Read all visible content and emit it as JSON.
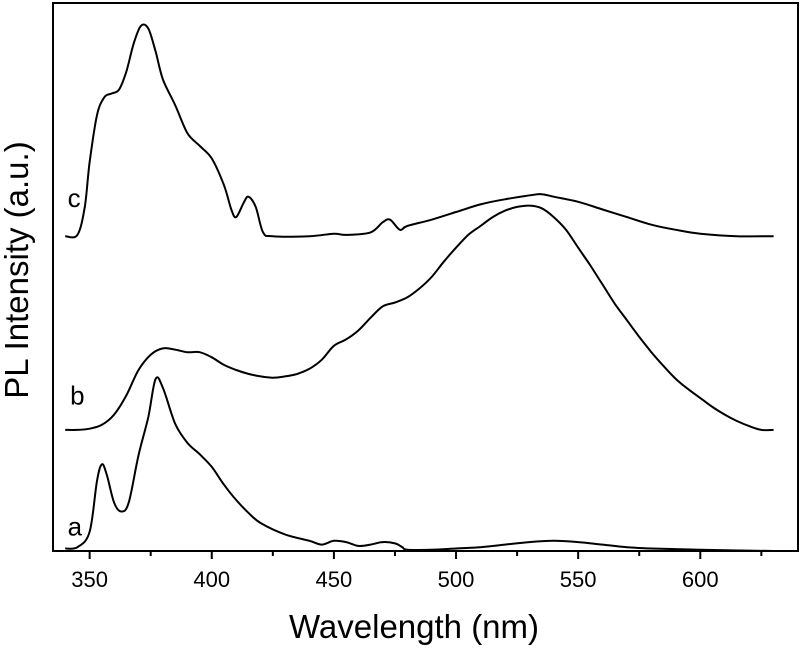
{
  "chart_data": {
    "type": "line",
    "xlabel": "Wavelength (nm)",
    "ylabel": "PL Intensity (a.u.)",
    "xlim": [
      335,
      640
    ],
    "ylim": [
      0,
      4.3
    ],
    "xticks": [
      350,
      400,
      450,
      500,
      550,
      600
    ],
    "y_tick_labels": false,
    "grid": false,
    "legend": "none",
    "series": [
      {
        "name": "a",
        "label_x": 341,
        "label_y": 0.12,
        "points": [
          [
            340,
            0.02
          ],
          [
            345,
            0.03
          ],
          [
            350,
            0.15
          ],
          [
            353,
            0.55
          ],
          [
            355,
            0.68
          ],
          [
            357,
            0.6
          ],
          [
            360,
            0.38
          ],
          [
            363,
            0.31
          ],
          [
            366,
            0.38
          ],
          [
            370,
            0.75
          ],
          [
            374,
            1.05
          ],
          [
            377,
            1.35
          ],
          [
            380,
            1.28
          ],
          [
            385,
            1.0
          ],
          [
            390,
            0.85
          ],
          [
            395,
            0.76
          ],
          [
            400,
            0.66
          ],
          [
            405,
            0.52
          ],
          [
            410,
            0.4
          ],
          [
            415,
            0.3
          ],
          [
            420,
            0.22
          ],
          [
            430,
            0.13
          ],
          [
            440,
            0.08
          ],
          [
            445,
            0.05
          ],
          [
            450,
            0.08
          ],
          [
            455,
            0.07
          ],
          [
            460,
            0.04
          ],
          [
            465,
            0.05
          ],
          [
            470,
            0.07
          ],
          [
            475,
            0.06
          ],
          [
            478,
            0.03
          ],
          [
            480,
            0.01
          ],
          [
            490,
            0.01
          ],
          [
            500,
            0.02
          ],
          [
            510,
            0.03
          ],
          [
            520,
            0.05
          ],
          [
            530,
            0.07
          ],
          [
            540,
            0.08
          ],
          [
            550,
            0.07
          ],
          [
            560,
            0.05
          ],
          [
            570,
            0.03
          ],
          [
            580,
            0.02
          ],
          [
            600,
            0.01
          ],
          [
            630,
            0.0
          ]
        ]
      },
      {
        "name": "b",
        "label_x": 342,
        "label_y": 1.15,
        "points": [
          [
            340,
            0.95
          ],
          [
            345,
            0.95
          ],
          [
            350,
            0.96
          ],
          [
            355,
            0.99
          ],
          [
            360,
            1.07
          ],
          [
            365,
            1.22
          ],
          [
            370,
            1.42
          ],
          [
            375,
            1.54
          ],
          [
            380,
            1.59
          ],
          [
            385,
            1.58
          ],
          [
            390,
            1.56
          ],
          [
            395,
            1.56
          ],
          [
            400,
            1.52
          ],
          [
            405,
            1.46
          ],
          [
            410,
            1.42
          ],
          [
            415,
            1.39
          ],
          [
            420,
            1.37
          ],
          [
            425,
            1.36
          ],
          [
            430,
            1.37
          ],
          [
            435,
            1.39
          ],
          [
            440,
            1.43
          ],
          [
            445,
            1.5
          ],
          [
            450,
            1.61
          ],
          [
            455,
            1.66
          ],
          [
            460,
            1.73
          ],
          [
            465,
            1.83
          ],
          [
            470,
            1.92
          ],
          [
            475,
            1.95
          ],
          [
            480,
            1.99
          ],
          [
            485,
            2.06
          ],
          [
            490,
            2.15
          ],
          [
            495,
            2.27
          ],
          [
            500,
            2.38
          ],
          [
            505,
            2.48
          ],
          [
            510,
            2.55
          ],
          [
            515,
            2.62
          ],
          [
            520,
            2.67
          ],
          [
            525,
            2.7
          ],
          [
            530,
            2.71
          ],
          [
            535,
            2.69
          ],
          [
            540,
            2.62
          ],
          [
            545,
            2.52
          ],
          [
            550,
            2.38
          ],
          [
            555,
            2.24
          ],
          [
            560,
            2.09
          ],
          [
            565,
            1.94
          ],
          [
            570,
            1.81
          ],
          [
            575,
            1.68
          ],
          [
            580,
            1.56
          ],
          [
            585,
            1.45
          ],
          [
            590,
            1.35
          ],
          [
            595,
            1.27
          ],
          [
            600,
            1.2
          ],
          [
            605,
            1.13
          ],
          [
            610,
            1.07
          ],
          [
            615,
            1.02
          ],
          [
            620,
            0.98
          ],
          [
            625,
            0.95
          ],
          [
            630,
            0.95
          ]
        ]
      },
      {
        "name": "c",
        "label_x": 341,
        "label_y": 2.7,
        "points": [
          [
            340,
            2.47
          ],
          [
            345,
            2.48
          ],
          [
            348,
            2.7
          ],
          [
            350,
            3.05
          ],
          [
            353,
            3.42
          ],
          [
            356,
            3.56
          ],
          [
            359,
            3.59
          ],
          [
            362,
            3.62
          ],
          [
            365,
            3.76
          ],
          [
            368,
            3.98
          ],
          [
            371,
            4.12
          ],
          [
            374,
            4.1
          ],
          [
            377,
            3.92
          ],
          [
            380,
            3.7
          ],
          [
            385,
            3.5
          ],
          [
            390,
            3.28
          ],
          [
            395,
            3.18
          ],
          [
            400,
            3.08
          ],
          [
            405,
            2.87
          ],
          [
            408,
            2.68
          ],
          [
            410,
            2.62
          ],
          [
            413,
            2.73
          ],
          [
            415,
            2.78
          ],
          [
            418,
            2.7
          ],
          [
            421,
            2.5
          ],
          [
            425,
            2.47
          ],
          [
            440,
            2.47
          ],
          [
            450,
            2.49
          ],
          [
            455,
            2.48
          ],
          [
            465,
            2.5
          ],
          [
            470,
            2.58
          ],
          [
            473,
            2.6
          ],
          [
            477,
            2.52
          ],
          [
            480,
            2.55
          ],
          [
            490,
            2.6
          ],
          [
            500,
            2.66
          ],
          [
            510,
            2.72
          ],
          [
            520,
            2.76
          ],
          [
            530,
            2.79
          ],
          [
            535,
            2.8
          ],
          [
            540,
            2.78
          ],
          [
            550,
            2.74
          ],
          [
            560,
            2.68
          ],
          [
            570,
            2.62
          ],
          [
            580,
            2.56
          ],
          [
            590,
            2.52
          ],
          [
            600,
            2.49
          ],
          [
            615,
            2.47
          ],
          [
            630,
            2.47
          ]
        ]
      }
    ]
  }
}
